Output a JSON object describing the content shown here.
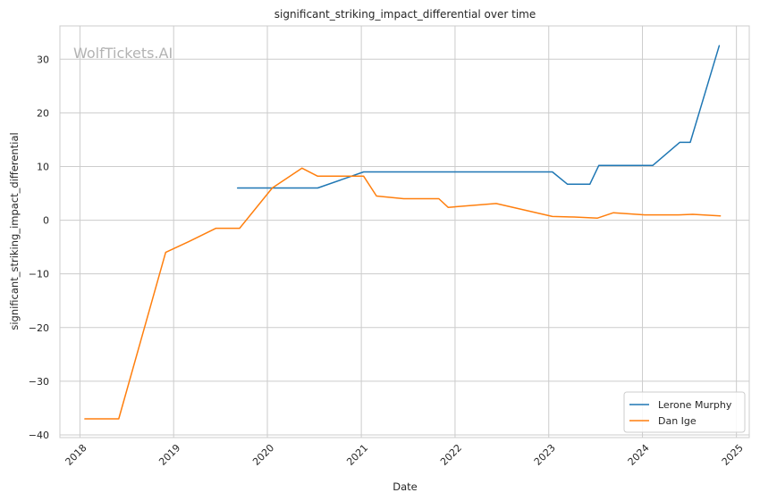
{
  "chart_data": {
    "type": "line",
    "title": "significant_striking_impact_differential over time",
    "xlabel": "Date",
    "ylabel": "significant_striking_impact_differential",
    "watermark": "WolfTickets.AI",
    "xlim": [
      "2017-10-15",
      "2025-02-20"
    ],
    "ylim": [
      -40.5,
      36.2
    ],
    "x_ticks": [
      "2018",
      "2019",
      "2020",
      "2021",
      "2022",
      "2023",
      "2024",
      "2025"
    ],
    "y_ticks": [
      30,
      20,
      10,
      0,
      -10,
      -20,
      -30,
      -40
    ],
    "y_tick_labels": [
      "30",
      "20",
      "10",
      "0",
      "−10",
      "−20",
      "−30",
      "−40"
    ],
    "grid": true,
    "legend_position": "lower-right",
    "series": [
      {
        "name": "Lerone Murphy",
        "color": "#1f77b4",
        "points": [
          [
            "2019-09-07",
            6.0
          ],
          [
            "2020-07-15",
            6.0
          ],
          [
            "2021-01-10",
            9.0
          ],
          [
            "2023-01-15",
            9.0
          ],
          [
            "2023-03-15",
            6.7
          ],
          [
            "2023-06-10",
            6.7
          ],
          [
            "2023-07-15",
            10.2
          ],
          [
            "2024-02-10",
            10.2
          ],
          [
            "2024-05-25",
            14.5
          ],
          [
            "2024-07-05",
            14.5
          ],
          [
            "2024-10-26",
            32.5
          ]
        ]
      },
      {
        "name": "Dan Ige",
        "color": "#ff7f0e",
        "points": [
          [
            "2018-01-20",
            -37.0
          ],
          [
            "2018-06-01",
            -37.0
          ],
          [
            "2018-12-01",
            -6.0
          ],
          [
            "2019-03-01",
            -4.0
          ],
          [
            "2019-06-15",
            -1.5
          ],
          [
            "2019-09-15",
            -1.5
          ],
          [
            "2020-01-20",
            6.0
          ],
          [
            "2020-05-15",
            9.7
          ],
          [
            "2020-07-15",
            8.2
          ],
          [
            "2021-01-10",
            8.2
          ],
          [
            "2021-03-01",
            4.5
          ],
          [
            "2021-06-15",
            4.0
          ],
          [
            "2021-10-30",
            4.0
          ],
          [
            "2021-12-05",
            2.4
          ],
          [
            "2022-06-10",
            3.1
          ],
          [
            "2023-01-15",
            0.7
          ],
          [
            "2023-04-10",
            0.6
          ],
          [
            "2023-07-10",
            0.4
          ],
          [
            "2023-09-10",
            1.4
          ],
          [
            "2024-01-10",
            1.0
          ],
          [
            "2024-05-20",
            1.0
          ],
          [
            "2024-07-15",
            1.1
          ],
          [
            "2024-10-30",
            0.8
          ]
        ]
      }
    ]
  }
}
